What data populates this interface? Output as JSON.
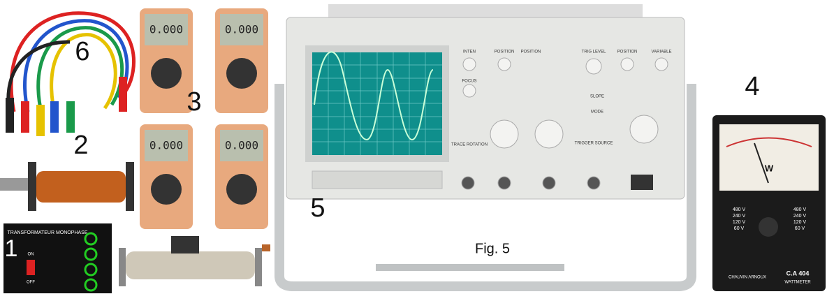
{
  "labels": {
    "cables": "6",
    "multimeters": "3",
    "leads": "2",
    "transformer": "1",
    "oscilloscope": "5",
    "wattmeter": "4"
  },
  "caption": "Fig. 5",
  "multimeter_displays": [
    "0.000",
    "0.000",
    "0.000",
    "0.000"
  ],
  "transformer": {
    "title": "TRANSFORMATEUR MONOPHASE",
    "on": "ON",
    "off": "OFF"
  },
  "oscilloscope": {
    "controls": [
      "INTEN",
      "POSITION",
      "POSITION",
      "TRIG LEVEL",
      "POSITION",
      "VARIABLE",
      "FOCUS",
      "SLOPE",
      "MODE",
      "TRIGGER SOURCE",
      "TRACE ROTATION"
    ]
  },
  "wattmeter": {
    "unit": "W",
    "ranges": [
      "480 V",
      "240 V",
      "120 V",
      "60 V"
    ],
    "model": "C.A 404",
    "brand": "CHAUVIN ARNOUX",
    "kind": "WATTMETER"
  }
}
